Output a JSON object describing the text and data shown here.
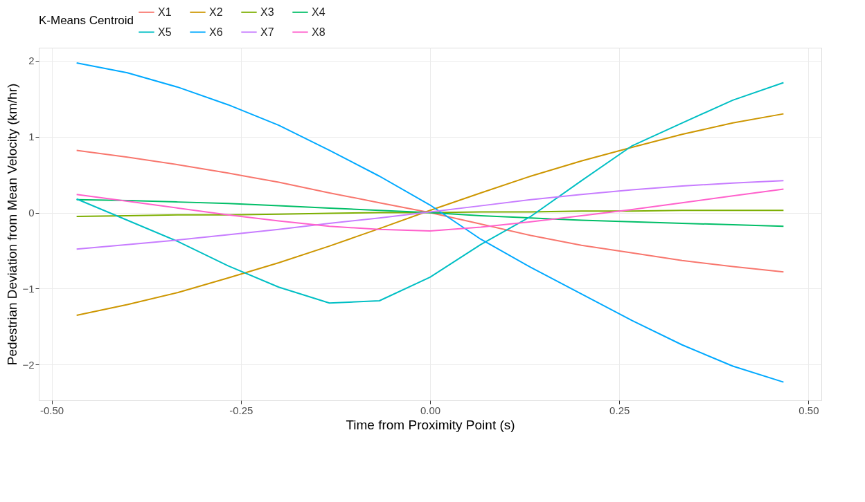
{
  "chart_data": {
    "type": "line",
    "xlabel": "Time from Proximity Point (s)",
    "ylabel": "Pedestrian Deviation from Mean Velocity (km/hr)",
    "legend_title": "K-Means Centroid",
    "x": [
      -0.467,
      -0.4,
      -0.333,
      -0.267,
      -0.2,
      -0.133,
      -0.067,
      0,
      0.067,
      0.133,
      0.2,
      0.267,
      0.333,
      0.4,
      0.467
    ],
    "series": [
      {
        "name": "X1",
        "color": "#f8766d",
        "values": [
          0.82,
          0.73,
          0.63,
          0.52,
          0.4,
          0.26,
          0.13,
          0,
          -0.15,
          -0.3,
          -0.43,
          -0.53,
          -0.63,
          -0.71,
          -0.78
        ]
      },
      {
        "name": "X2",
        "color": "#cd9600",
        "values": [
          -1.35,
          -1.21,
          -1.05,
          -0.86,
          -0.66,
          -0.44,
          -0.21,
          0.03,
          0.26,
          0.48,
          0.68,
          0.86,
          1.03,
          1.18,
          1.3
        ]
      },
      {
        "name": "X3",
        "color": "#7cae00",
        "values": [
          -0.05,
          -0.04,
          -0.03,
          -0.03,
          -0.02,
          -0.01,
          0,
          0,
          0.01,
          0.01,
          0.02,
          0.02,
          0.03,
          0.03,
          0.03
        ]
      },
      {
        "name": "X4",
        "color": "#00be67",
        "values": [
          0.17,
          0.16,
          0.14,
          0.12,
          0.09,
          0.06,
          0.03,
          0,
          -0.04,
          -0.07,
          -0.1,
          -0.12,
          -0.14,
          -0.16,
          -0.18
        ]
      },
      {
        "name": "X5",
        "color": "#00bfc4",
        "values": [
          0.18,
          -0.1,
          -0.38,
          -0.7,
          -0.98,
          -1.19,
          -1.16,
          -0.85,
          -0.42,
          -0.05,
          0.42,
          0.88,
          1.18,
          1.48,
          1.71
        ]
      },
      {
        "name": "X6",
        "color": "#00a9ff",
        "values": [
          1.97,
          1.84,
          1.65,
          1.42,
          1.15,
          0.82,
          0.48,
          0.1,
          -0.35,
          -0.72,
          -1.07,
          -1.42,
          -1.74,
          -2.02,
          -2.23
        ]
      },
      {
        "name": "X7",
        "color": "#c77cff",
        "values": [
          -0.48,
          -0.42,
          -0.36,
          -0.29,
          -0.22,
          -0.14,
          -0.07,
          0.01,
          0.09,
          0.17,
          0.24,
          0.3,
          0.35,
          0.39,
          0.42
        ]
      },
      {
        "name": "X8",
        "color": "#ff61cc",
        "values": [
          0.24,
          0.15,
          0.06,
          -0.03,
          -0.11,
          -0.18,
          -0.22,
          -0.24,
          -0.19,
          -0.12,
          -0.04,
          0.04,
          0.13,
          0.22,
          0.31
        ]
      }
    ],
    "xlim": [
      -0.517,
      0.517
    ],
    "ylim": [
      -2.47,
      2.17
    ],
    "xticks": [
      {
        "value": -0.5,
        "label": "-0.50"
      },
      {
        "value": -0.25,
        "label": "-0.25"
      },
      {
        "value": 0,
        "label": "0.00"
      },
      {
        "value": 0.25,
        "label": "0.25"
      },
      {
        "value": 0.5,
        "label": "0.50"
      }
    ],
    "yticks": [
      -2,
      -1,
      0,
      1,
      2
    ],
    "grid": true,
    "legend": "top",
    "line_style": "solid",
    "marker": "none"
  }
}
